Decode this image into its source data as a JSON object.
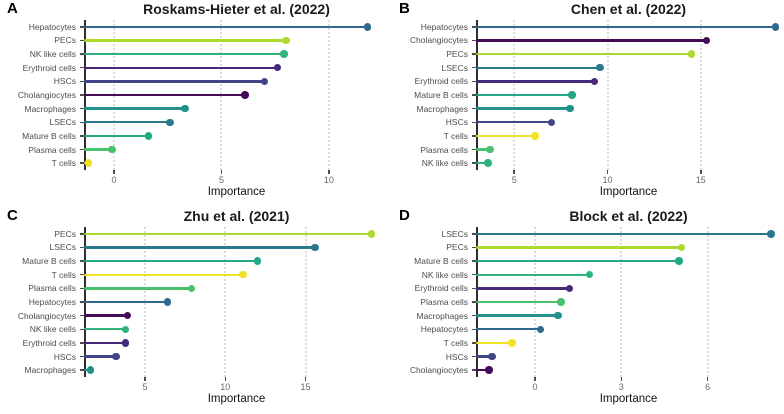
{
  "style": {
    "cell_colors": {
      "Hepatocytes": "#31688e",
      "PECs": "#acd92c",
      "NK like cells": "#2eb37c",
      "Erythroid cells": "#482878",
      "HSCs": "#414487",
      "Cholangiocytes": "#450b57",
      "Macrophages": "#21918c",
      "LSECs": "#2a788e",
      "Mature B cells": "#22a884",
      "Plasma cells": "#49c16d",
      "T cells": "#f0e226"
    },
    "gridline_color": "#dcdcdc",
    "axis_line_color": "#2e2e2e",
    "tick_color": "#4d4d4d",
    "y_label_color": "#4d4d4d",
    "x_tick_label_color": "#696969",
    "title_color": "#1a1a1a"
  },
  "chart_data": [
    {
      "type": "lollipop",
      "panel_label": "A",
      "title": "Roskams-Hieter et al. (2022)",
      "xlabel": "Importance",
      "xlim": [
        -1.4,
        12.8
      ],
      "xticks": [
        0,
        5,
        10
      ],
      "grid": "dotted-vertical",
      "legend": "none",
      "categories": [
        "Hepatocytes",
        "PECs",
        "NK like cells",
        "Erythroid cells",
        "HSCs",
        "Cholangiocytes",
        "Macrophages",
        "LSECs",
        "Mature B cells",
        "Plasma cells",
        "T cells"
      ],
      "values": [
        11.8,
        8.0,
        7.9,
        7.6,
        7.0,
        6.1,
        3.3,
        2.6,
        1.6,
        -0.1,
        -1.2
      ]
    },
    {
      "type": "lollipop",
      "panel_label": "B",
      "title": "Chen et al. (2022)",
      "xlabel": "Importance",
      "xlim": [
        2.95,
        19.3
      ],
      "xticks": [
        5,
        10,
        15
      ],
      "grid": "dotted-vertical",
      "legend": "none",
      "categories": [
        "Hepatocytes",
        "Cholangiocytes",
        "PECs",
        "LSECs",
        "Erythroid cells",
        "Mature B cells",
        "Macrophages",
        "HSCs",
        "T cells",
        "Plasma cells",
        "NK like cells"
      ],
      "values": [
        19.0,
        15.3,
        14.5,
        9.6,
        9.3,
        8.1,
        8.0,
        7.0,
        6.1,
        3.7,
        3.6
      ]
    },
    {
      "type": "lollipop",
      "panel_label": "C",
      "title": "Zhu et al. (2021)",
      "xlabel": "Importance",
      "xlim": [
        1.2,
        20.2
      ],
      "xticks": [
        5,
        10,
        15
      ],
      "grid": "dotted-vertical",
      "legend": "none",
      "categories": [
        "PECs",
        "LSECs",
        "Mature B cells",
        "T cells",
        "Plasma cells",
        "Hepatocytes",
        "Cholangiocytes",
        "NK like cells",
        "Erythroid cells",
        "HSCs",
        "Macrophages"
      ],
      "values": [
        19.1,
        15.6,
        12.0,
        11.1,
        7.9,
        6.4,
        3.9,
        3.8,
        3.8,
        3.2,
        1.6
      ]
    },
    {
      "type": "lollipop",
      "panel_label": "D",
      "title": "Block et al. (2022)",
      "xlabel": "Importance",
      "xlim": [
        -2.05,
        8.55
      ],
      "xticks": [
        0,
        3,
        6
      ],
      "grid": "dotted-vertical",
      "legend": "none",
      "categories": [
        "LSECs",
        "PECs",
        "Mature B cells",
        "NK like cells",
        "Erythroid cells",
        "Plasma cells",
        "Macrophages",
        "Hepatocytes",
        "T cells",
        "HSCs",
        "Cholangiocytes"
      ],
      "values": [
        8.2,
        5.1,
        5.0,
        1.9,
        1.2,
        0.9,
        0.8,
        0.2,
        -0.8,
        -1.5,
        -1.6
      ]
    }
  ]
}
